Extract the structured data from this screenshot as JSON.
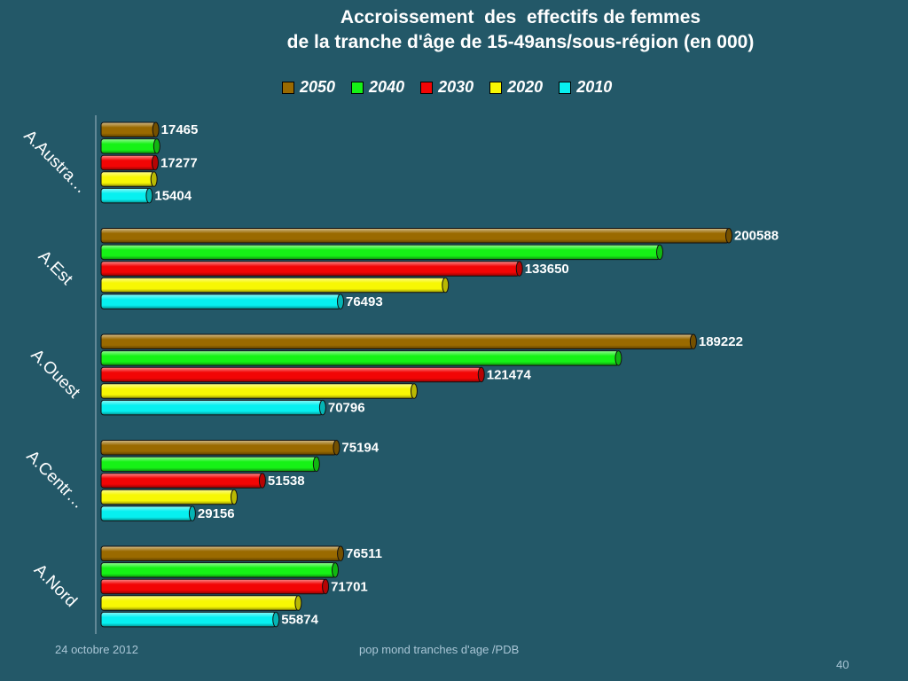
{
  "title_lines": [
    "Accroissement  des  effectifs de femmes",
    "de la tranche d'âge de 15-49ans/sous-région (en 000)"
  ],
  "footer": {
    "date": "24 octobre 2012",
    "center": "pop mond  tranches d'age /PDB",
    "page": "40"
  },
  "colors": {
    "2050": "#9a6a00",
    "2040": "#16f216",
    "2030": "#f20505",
    "2020": "#f7f704",
    "2010": "#07f0f0",
    "background": "#235868"
  },
  "chart_data": {
    "type": "bar",
    "orientation": "horizontal",
    "title": "Accroissement  des  effectifs de femmes de la tranche d'âge de 15-49ans/sous-région (en 000)",
    "categories": [
      "A.Austra…",
      "A.Est",
      "A.Ouest",
      "A.Centr…",
      "A.Nord"
    ],
    "series": [
      {
        "name": "2050",
        "values": [
          17465,
          200588,
          189222,
          75194,
          76511
        ],
        "labels": [
          "17465",
          "200588",
          "189222",
          "75194",
          "76511"
        ]
      },
      {
        "name": "2040",
        "values": [
          17800,
          178500,
          165300,
          68800,
          74800
        ],
        "labels": [
          "",
          "",
          "",
          "",
          ""
        ]
      },
      {
        "name": "2030",
        "values": [
          17277,
          133650,
          121474,
          51538,
          71701
        ],
        "labels": [
          "17277",
          "133650",
          "121474",
          "51538",
          "71701"
        ]
      },
      {
        "name": "2020",
        "values": [
          16900,
          110000,
          100000,
          42500,
          63000
        ],
        "labels": [
          "",
          "",
          "",
          "",
          ""
        ]
      },
      {
        "name": "2010",
        "values": [
          15404,
          76493,
          70796,
          29156,
          55874
        ],
        "labels": [
          "15404",
          "76493",
          "70796",
          "29156",
          "55874"
        ]
      }
    ],
    "legend_order": [
      "2050",
      "2040",
      "2030",
      "2020",
      "2010"
    ],
    "legend_position": "top",
    "xlim": [
      0,
      210000
    ],
    "grid": false
  }
}
